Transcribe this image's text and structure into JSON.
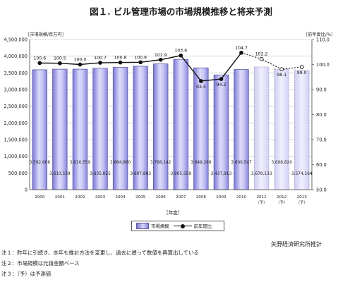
{
  "title": "図１. ビル管理市場の市場規模推移と将来予測",
  "left_axis_unit": "［市場規模/百万円］",
  "right_axis_unit": "［前年度比/％］",
  "x_axis_title": "［年度］",
  "legend": {
    "bar_label": "市場規模",
    "line_label": "前年度比"
  },
  "credit": "矢野経済研究所推計",
  "notes": [
    "注１：昨年に引続き、本年も推計方法を変更し、過去に遡って数値を再算出している",
    "注２：市場規模は元請金額ベース",
    "注３：（予）は予測値"
  ],
  "colors": {
    "bar": "#b9b6f2",
    "bar_edge": "#5d5a9e",
    "forecast_edge": "#9a98c8",
    "line": "#111111"
  },
  "chart_data": {
    "type": "bar",
    "categories": [
      "2000",
      "2001",
      "2002",
      "2003",
      "2004",
      "2005",
      "2006",
      "2007",
      "2008",
      "2009",
      "2010",
      "2011",
      "2012",
      "2013"
    ],
    "category_suffix": [
      "",
      "",
      "",
      "",
      "",
      "",
      "",
      "",
      "",
      "",
      "",
      "（予）",
      "（予）",
      "（予）"
    ],
    "forecast_flags": [
      false,
      false,
      false,
      false,
      false,
      false,
      false,
      false,
      false,
      false,
      false,
      true,
      true,
      true
    ],
    "bar_labels": [
      "3,592,606",
      "3,610,559",
      "3,610,559",
      "3,635,825",
      "3,664,860",
      "3,697,883",
      "3,768,142",
      "3,905,559",
      "3,649,288",
      "3,437,913",
      "3,600,547",
      "3,678,133",
      "3,608,820",
      "3,574,164"
    ],
    "series": [
      {
        "name": "市場規模",
        "type": "bar",
        "axis": "left",
        "values": [
          3592606,
          3610559,
          3610559,
          3635825,
          3664860,
          3697883,
          3768142,
          3905559,
          3649288,
          3437913,
          3600547,
          3678133,
          3608820,
          3574164
        ]
      },
      {
        "name": "前年度比",
        "type": "line",
        "axis": "right",
        "values": [
          100.6,
          100.5,
          100.0,
          100.7,
          100.8,
          100.9,
          101.9,
          103.6,
          93.4,
          94.2,
          104.7,
          102.2,
          98.1,
          99.0
        ]
      }
    ],
    "line_labels": [
      "100.6",
      "100.5",
      "100.0",
      "100.7",
      "100.8",
      "100.9",
      "101.9",
      "103.6",
      "93.4",
      "94.2",
      "104.7",
      "102.2",
      "98.1",
      "99.0"
    ],
    "y_left": {
      "min": 0,
      "max": 4500000,
      "ticks": [
        "0",
        "500,000",
        "1,000,000",
        "1,500,000",
        "2,000,000",
        "2,500,000",
        "3,000,000",
        "3,500,000",
        "4,000,000",
        "4,500,000"
      ]
    },
    "y_right": {
      "min": 50,
      "max": 110,
      "ticks": [
        "50.0",
        "60.0",
        "70.0",
        "80.0",
        "90.0",
        "100.0",
        "110.0"
      ]
    },
    "grid": true,
    "legend_position": "bottom"
  }
}
